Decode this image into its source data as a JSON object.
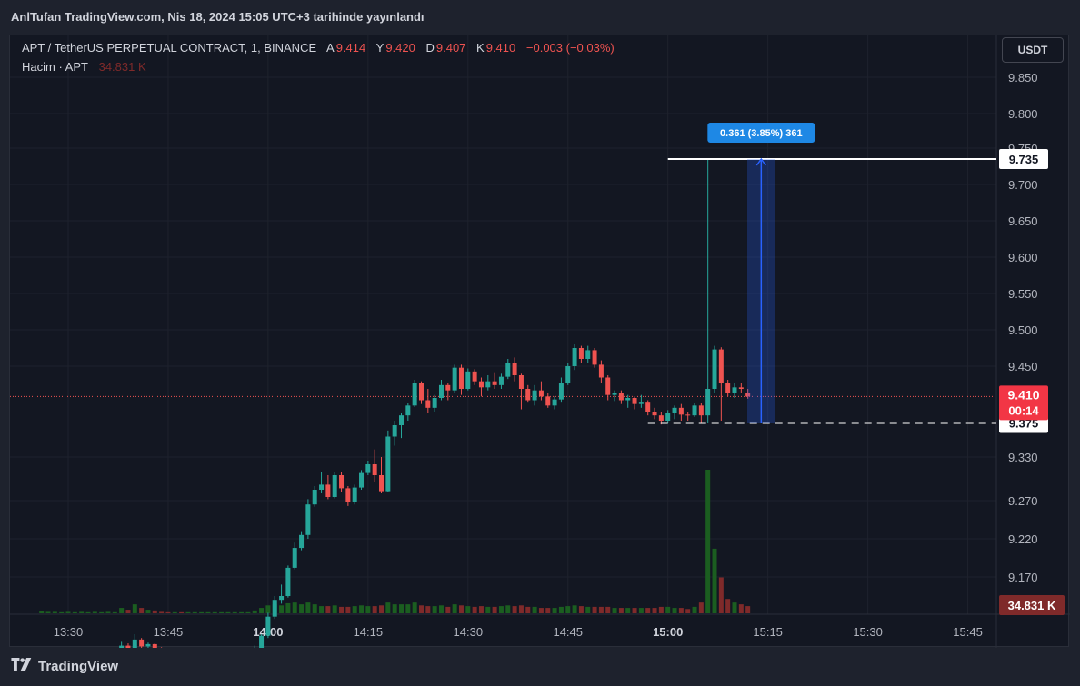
{
  "header": {
    "title": "AnlTufan TradingView.com, Nis 18, 2024 15:05 UTC+3 tarihinde yayınlandı"
  },
  "legend": {
    "symbol": "APT / TetherUS PERPETUAL CONTRACT, 1, BINANCE",
    "open_label": "A",
    "open": "9.414",
    "high_label": "Y",
    "high": "9.420",
    "low_label": "D",
    "low": "9.407",
    "close_label": "K",
    "close": "9.410",
    "change": "−0.003 (−0.03%)",
    "volume_label": "Hacim · APT",
    "volume_value": "34.831 K"
  },
  "currency_button": "USDT",
  "footer": {
    "brand": "TradingView"
  },
  "colors": {
    "up": "#26a69a",
    "down": "#ef5350",
    "up_volume": "#1b5e20",
    "down_volume": "#7f2a2a",
    "background": "#131722",
    "grid": "#1e222d",
    "measure": "#2962ff"
  },
  "chart_data": {
    "type": "candlestick",
    "interval_minutes": 1,
    "y_ticks": [
      "9.850",
      "9.800",
      "9.750",
      "9.700",
      "9.650",
      "9.600",
      "9.550",
      "9.500",
      "9.450",
      "9.330",
      "9.270",
      "9.220",
      "9.170"
    ],
    "x_ticks": [
      "13:30",
      "13:45",
      "14:00",
      "14:15",
      "14:30",
      "14:45",
      "15:00",
      "15:15",
      "15:30",
      "15:45"
    ],
    "last_price": "9.410",
    "countdown": "00:14",
    "price_labels": [
      "9.735",
      "9.375"
    ],
    "volume_label": "34.831 K",
    "measure": {
      "label": "0.361 (3.85%) 361",
      "from_price": 9.375,
      "to_price": 9.735,
      "from_time": "15:13",
      "to_time": "15:15"
    },
    "horizontal_lines": [
      {
        "price": 9.735,
        "style": "solid",
        "start_time": "15:00"
      },
      {
        "price": 9.375,
        "style": "dashed",
        "start_time": "14:57"
      }
    ],
    "start_time": "13:26",
    "candles": [
      [
        9.072,
        9.073,
        9.071,
        9.072,
        0.5
      ],
      [
        9.072,
        9.073,
        9.071,
        9.072,
        0.4
      ],
      [
        9.072,
        9.073,
        9.071,
        9.072,
        0.4
      ],
      [
        9.072,
        9.073,
        9.071,
        9.072,
        0.3
      ],
      [
        9.072,
        9.073,
        9.071,
        9.072,
        0.4
      ],
      [
        9.072,
        9.073,
        9.071,
        9.072,
        0.3
      ],
      [
        9.072,
        9.073,
        9.071,
        9.072,
        0.4
      ],
      [
        9.072,
        9.073,
        9.071,
        9.072,
        0.3
      ],
      [
        9.072,
        9.073,
        9.071,
        9.072,
        0.4
      ],
      [
        9.072,
        9.073,
        9.071,
        9.072,
        0.3
      ],
      [
        9.072,
        9.073,
        9.071,
        9.072,
        0.4
      ],
      [
        9.072,
        9.073,
        9.071,
        9.072,
        0.3
      ],
      [
        9.072,
        9.085,
        9.071,
        9.08,
        1.5
      ],
      [
        9.08,
        9.083,
        9.072,
        9.075,
        1.0
      ],
      [
        9.075,
        9.095,
        9.073,
        9.088,
        2.5
      ],
      [
        9.088,
        9.09,
        9.076,
        9.079,
        1.5
      ],
      [
        9.079,
        9.084,
        9.072,
        9.082,
        1.0
      ],
      [
        9.082,
        9.083,
        9.074,
        9.076,
        0.8
      ],
      [
        9.076,
        9.078,
        9.073,
        9.074,
        0.4
      ],
      [
        9.074,
        9.075,
        9.072,
        9.073,
        0.3
      ],
      [
        9.073,
        9.074,
        9.071,
        9.073,
        0.3
      ],
      [
        9.073,
        9.074,
        9.071,
        9.072,
        0.3
      ],
      [
        9.072,
        9.073,
        9.071,
        9.072,
        0.3
      ],
      [
        9.072,
        9.073,
        9.071,
        9.072,
        0.3
      ],
      [
        9.072,
        9.073,
        9.071,
        9.072,
        0.3
      ],
      [
        9.072,
        9.073,
        9.071,
        9.072,
        0.3
      ],
      [
        9.072,
        9.073,
        9.071,
        9.072,
        0.3
      ],
      [
        9.072,
        9.073,
        9.071,
        9.072,
        0.3
      ],
      [
        9.072,
        9.073,
        9.071,
        9.072,
        0.3
      ],
      [
        9.072,
        9.073,
        9.071,
        9.072,
        0.3
      ],
      [
        9.072,
        9.073,
        9.071,
        9.072,
        0.3
      ],
      [
        9.072,
        9.073,
        9.071,
        9.072,
        0.3
      ],
      [
        9.072,
        9.08,
        9.07,
        9.075,
        0.8
      ],
      [
        9.075,
        9.095,
        9.073,
        9.093,
        1.5
      ],
      [
        9.093,
        9.123,
        9.09,
        9.118,
        2.2
      ],
      [
        9.118,
        9.145,
        9.115,
        9.14,
        2.5
      ],
      [
        9.14,
        9.16,
        9.135,
        9.145,
        2.2
      ],
      [
        9.145,
        9.185,
        9.143,
        9.182,
        2.8
      ],
      [
        9.182,
        9.215,
        9.18,
        9.208,
        3.0
      ],
      [
        9.208,
        9.23,
        9.205,
        9.225,
        2.5
      ],
      [
        9.225,
        9.272,
        9.22,
        9.265,
        3.0
      ],
      [
        9.265,
        9.29,
        9.262,
        9.285,
        2.5
      ],
      [
        9.285,
        9.31,
        9.28,
        9.292,
        2.0
      ],
      [
        9.292,
        9.305,
        9.272,
        9.275,
        2.0
      ],
      [
        9.275,
        9.31,
        9.273,
        9.305,
        2.2
      ],
      [
        9.305,
        9.31,
        9.282,
        9.287,
        1.8
      ],
      [
        9.287,
        9.29,
        9.263,
        9.268,
        1.8
      ],
      [
        9.268,
        9.292,
        9.265,
        9.288,
        2.0
      ],
      [
        9.288,
        9.312,
        9.285,
        9.308,
        2.2
      ],
      [
        9.308,
        9.325,
        9.305,
        9.32,
        2.0
      ],
      [
        9.32,
        9.34,
        9.295,
        9.305,
        2.0
      ],
      [
        9.305,
        9.33,
        9.28,
        9.283,
        2.2
      ],
      [
        9.283,
        9.365,
        9.282,
        9.357,
        3.0
      ],
      [
        9.357,
        9.378,
        9.345,
        9.372,
        2.5
      ],
      [
        9.372,
        9.388,
        9.355,
        9.385,
        2.5
      ],
      [
        9.385,
        9.402,
        9.378,
        9.398,
        2.5
      ],
      [
        9.398,
        9.432,
        9.396,
        9.428,
        3.0
      ],
      [
        9.428,
        9.43,
        9.4,
        9.405,
        2.2
      ],
      [
        9.405,
        9.42,
        9.388,
        9.395,
        2.0
      ],
      [
        9.395,
        9.412,
        9.39,
        9.408,
        2.0
      ],
      [
        9.408,
        9.432,
        9.405,
        9.425,
        2.2
      ],
      [
        9.425,
        9.428,
        9.405,
        9.418,
        1.8
      ],
      [
        9.418,
        9.452,
        9.415,
        9.448,
        2.5
      ],
      [
        9.448,
        9.452,
        9.412,
        9.42,
        2.2
      ],
      [
        9.42,
        9.447,
        9.418,
        9.443,
        2.0
      ],
      [
        9.443,
        9.446,
        9.425,
        9.43,
        1.8
      ],
      [
        9.43,
        9.435,
        9.41,
        9.422,
        2.0
      ],
      [
        9.422,
        9.438,
        9.418,
        9.43,
        1.8
      ],
      [
        9.43,
        9.442,
        9.42,
        9.425,
        1.8
      ],
      [
        9.425,
        9.44,
        9.42,
        9.436,
        2.0
      ],
      [
        9.436,
        9.46,
        9.433,
        9.455,
        2.2
      ],
      [
        9.455,
        9.462,
        9.43,
        9.438,
        2.0
      ],
      [
        9.438,
        9.44,
        9.393,
        9.42,
        2.2
      ],
      [
        9.42,
        9.425,
        9.403,
        9.405,
        1.8
      ],
      [
        9.405,
        9.425,
        9.398,
        9.418,
        1.8
      ],
      [
        9.418,
        9.43,
        9.405,
        9.41,
        1.5
      ],
      [
        9.41,
        9.415,
        9.395,
        9.398,
        1.5
      ],
      [
        9.398,
        9.41,
        9.393,
        9.406,
        1.5
      ],
      [
        9.406,
        9.435,
        9.403,
        9.428,
        1.8
      ],
      [
        9.428,
        9.455,
        9.425,
        9.45,
        2.0
      ],
      [
        9.45,
        9.48,
        9.445,
        9.475,
        2.2
      ],
      [
        9.475,
        9.478,
        9.455,
        9.46,
        2.0
      ],
      [
        9.46,
        9.478,
        9.455,
        9.472,
        1.8
      ],
      [
        9.472,
        9.475,
        9.448,
        9.452,
        1.8
      ],
      [
        9.452,
        9.458,
        9.428,
        9.435,
        1.8
      ],
      [
        9.435,
        9.438,
        9.405,
        9.412,
        1.8
      ],
      [
        9.412,
        9.418,
        9.404,
        9.415,
        1.5
      ],
      [
        9.415,
        9.418,
        9.4,
        9.405,
        1.5
      ],
      [
        9.405,
        9.412,
        9.395,
        9.408,
        1.5
      ],
      [
        9.408,
        9.41,
        9.393,
        9.4,
        1.5
      ],
      [
        9.4,
        9.412,
        9.395,
        9.403,
        1.5
      ],
      [
        9.403,
        9.405,
        9.385,
        9.39,
        1.5
      ],
      [
        9.39,
        9.395,
        9.38,
        9.385,
        1.5
      ],
      [
        9.385,
        9.39,
        9.373,
        9.378,
        1.8
      ],
      [
        9.378,
        9.392,
        9.375,
        9.388,
        1.8
      ],
      [
        9.388,
        9.398,
        9.38,
        9.395,
        1.5
      ],
      [
        9.395,
        9.4,
        9.378,
        9.386,
        1.5
      ],
      [
        9.386,
        9.39,
        9.378,
        9.385,
        1.2
      ],
      [
        9.385,
        9.401,
        9.383,
        9.398,
        1.8
      ],
      [
        9.398,
        9.402,
        9.375,
        9.385,
        3.0
      ],
      [
        9.385,
        9.735,
        9.375,
        9.42,
        40
      ],
      [
        9.42,
        9.478,
        9.415,
        9.473,
        18
      ],
      [
        9.473,
        9.476,
        9.378,
        9.428,
        10
      ],
      [
        9.428,
        9.432,
        9.41,
        9.415,
        4
      ],
      [
        9.415,
        9.428,
        9.408,
        9.422,
        3
      ],
      [
        9.422,
        9.428,
        9.414,
        9.42,
        2.5
      ],
      [
        9.414,
        9.42,
        9.407,
        9.41,
        2.0
      ]
    ]
  }
}
